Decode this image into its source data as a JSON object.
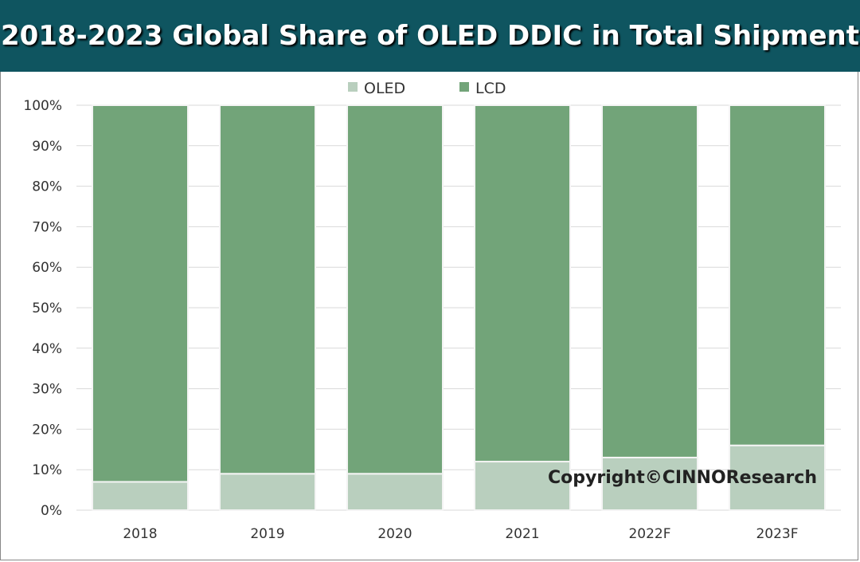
{
  "chart_data": {
    "type": "bar",
    "stacked": true,
    "title": "2018-2023 Global Share of OLED DDIC in Total Shipment",
    "categories": [
      "2018",
      "2019",
      "2020",
      "2021",
      "2022F",
      "2023F"
    ],
    "series": [
      {
        "name": "OLED",
        "values": [
          7,
          9,
          9,
          12,
          13,
          16
        ],
        "color": "#b9cfbe"
      },
      {
        "name": "LCD",
        "values": [
          93,
          91,
          91,
          88,
          87,
          84
        ],
        "color": "#72a479"
      }
    ],
    "ylim": [
      0,
      100
    ],
    "yticks": [
      "0%",
      "10%",
      "20%",
      "30%",
      "40%",
      "50%",
      "60%",
      "70%",
      "80%",
      "90%",
      "100%"
    ],
    "grid": true,
    "legend": "top",
    "annotation": "Copyright©CINNOResearch"
  }
}
